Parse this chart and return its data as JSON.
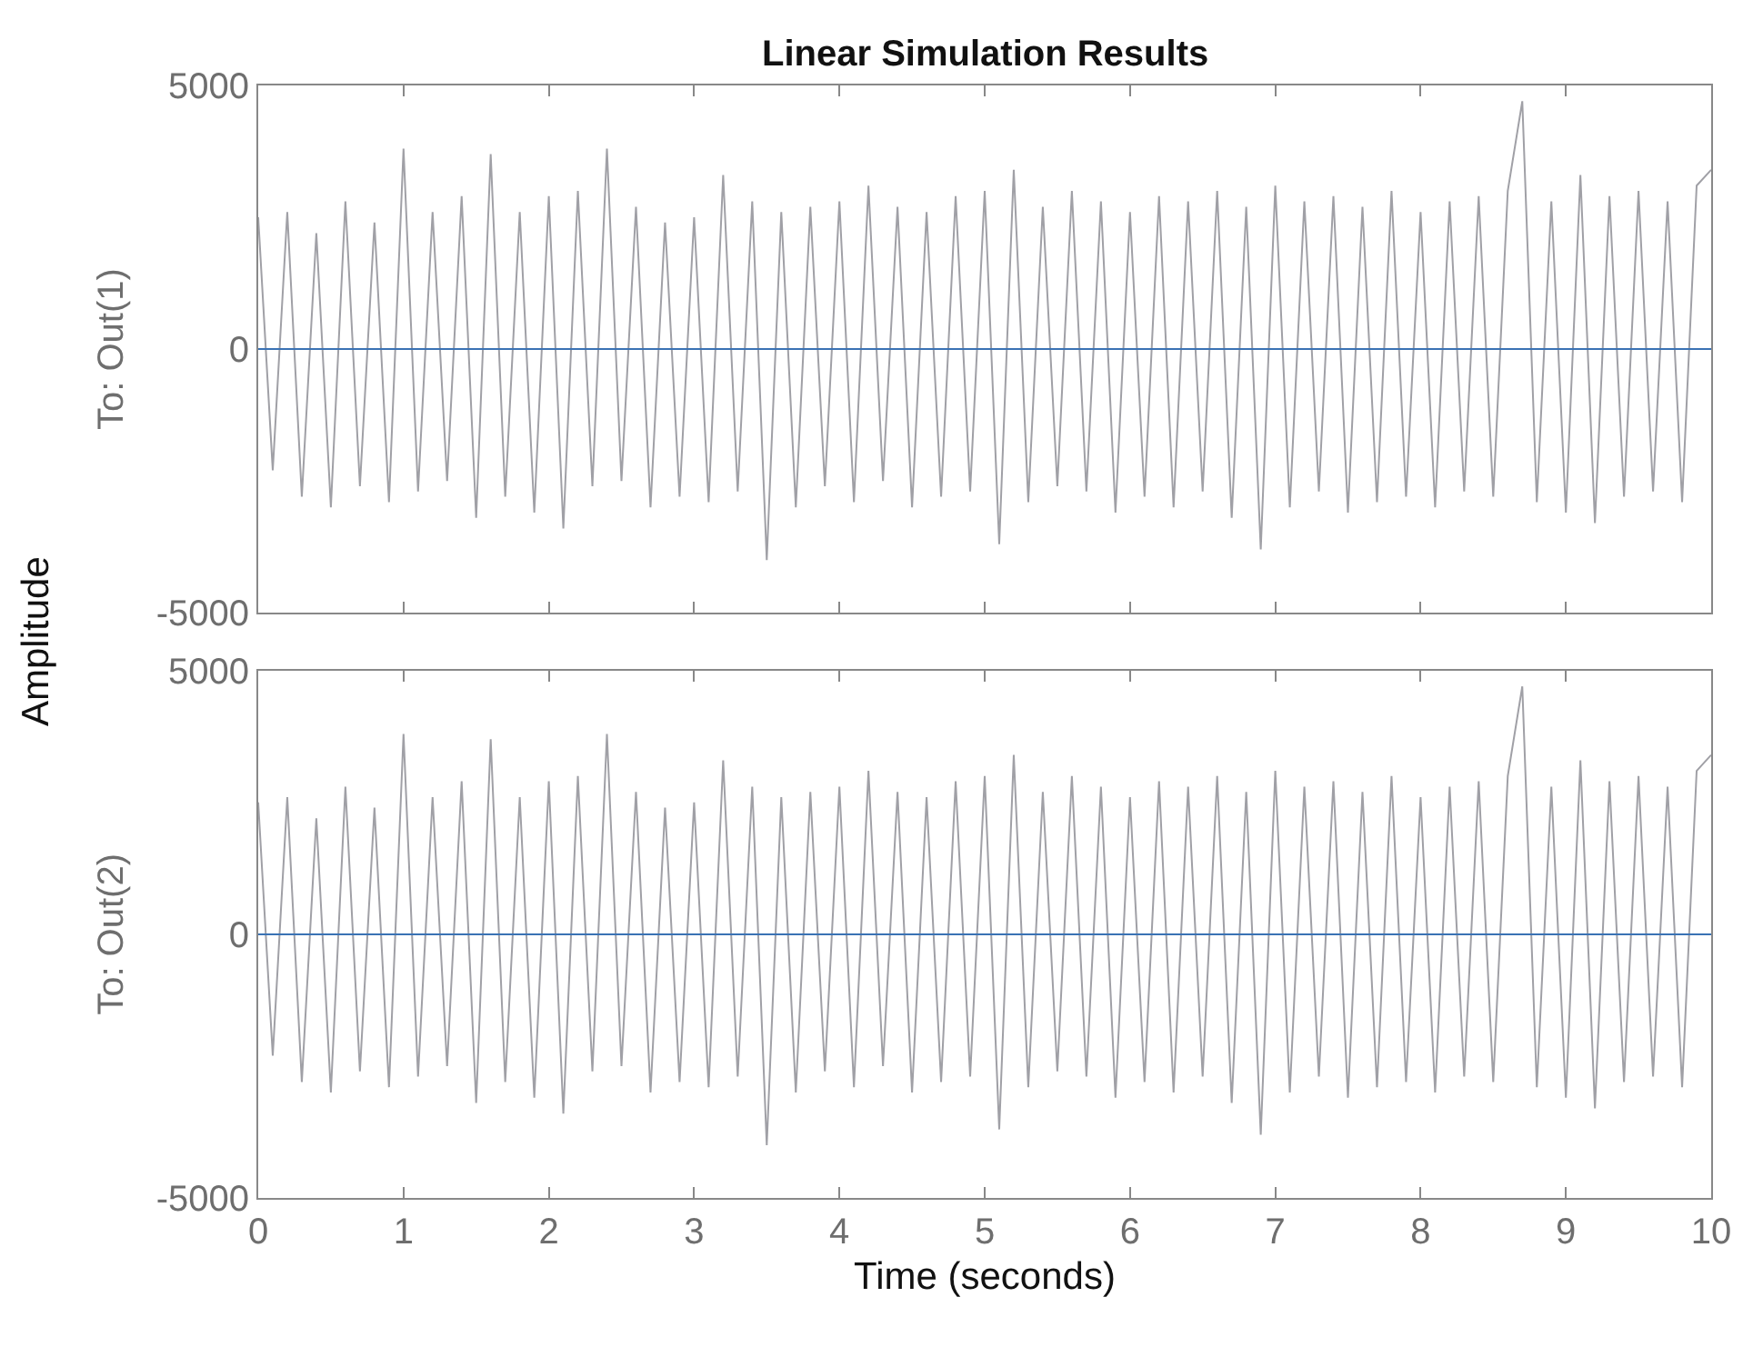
{
  "chart_data": [
    {
      "type": "line",
      "title": "Linear Simulation Results",
      "ylabel": "To: Out(1)",
      "annotations": [
        "Amplitude"
      ],
      "x": [
        0,
        0.1,
        0.2,
        0.3,
        0.4,
        0.5,
        0.6,
        0.7,
        0.8,
        0.9,
        1,
        1.1,
        1.2,
        1.3,
        1.4,
        1.5,
        1.6,
        1.7,
        1.8,
        1.9,
        2,
        2.1,
        2.2,
        2.3,
        2.4,
        2.5,
        2.6,
        2.7,
        2.8,
        2.9,
        3,
        3.1,
        3.2,
        3.3,
        3.4,
        3.5,
        3.6,
        3.7,
        3.8,
        3.9,
        4,
        4.1,
        4.2,
        4.3,
        4.4,
        4.5,
        4.6,
        4.7,
        4.8,
        4.9,
        5,
        5.1,
        5.2,
        5.3,
        5.4,
        5.5,
        5.6,
        5.7,
        5.8,
        5.9,
        6,
        6.1,
        6.2,
        6.3,
        6.4,
        6.5,
        6.6,
        6.7,
        6.8,
        6.9,
        7,
        7.1,
        7.2,
        7.3,
        7.4,
        7.5,
        7.6,
        7.7,
        7.8,
        7.9,
        8,
        8.1,
        8.2,
        8.3,
        8.4,
        8.5,
        8.6,
        8.7,
        8.8,
        8.9,
        9,
        9.1,
        9.2,
        9.3,
        9.4,
        9.5,
        9.6,
        9.7,
        9.8,
        9.9,
        10
      ],
      "series": [
        {
          "color": "#a0a0a6",
          "values": [
            2500,
            -2300,
            2600,
            -2800,
            2200,
            -3000,
            2800,
            -2600,
            2400,
            -2900,
            3800,
            -2700,
            2600,
            -2500,
            2900,
            -3200,
            3700,
            -2800,
            2600,
            -3100,
            2900,
            -3400,
            3000,
            -2600,
            3800,
            -2500,
            2700,
            -3000,
            2400,
            -2800,
            2500,
            -2900,
            3300,
            -2700,
            2800,
            -4000,
            2600,
            -3000,
            2700,
            -2600,
            2800,
            -2900,
            3100,
            -2500,
            2700,
            -3000,
            2600,
            -2800,
            2900,
            -2700,
            3000,
            -3700,
            3400,
            -2900,
            2700,
            -2600,
            3000,
            -2700,
            2800,
            -3100,
            2600,
            -2800,
            2900,
            -3000,
            2800,
            -2700,
            3000,
            -3200,
            2700,
            -3800,
            3100,
            -3000,
            2800,
            -2700,
            2900,
            -3100,
            2700,
            -2900,
            3000,
            -2800,
            2600,
            -3000,
            2800,
            -2700,
            2900,
            -2800,
            3000,
            4700,
            -2900,
            2800,
            -3100,
            3300,
            -3300,
            2900,
            -2800,
            3000,
            -2700,
            2800,
            -2900,
            3100,
            3400
          ]
        },
        {
          "color": "#3a72b4",
          "values": [
            0,
            0,
            0,
            0,
            0,
            0,
            0,
            0,
            0,
            0,
            0,
            0,
            0,
            0,
            0,
            0,
            0,
            0,
            0,
            0,
            0,
            0,
            0,
            0,
            0,
            0,
            0,
            0,
            0,
            0,
            0,
            0,
            0,
            0,
            0,
            0,
            0,
            0,
            0,
            0,
            0,
            0,
            0,
            0,
            0,
            0,
            0,
            0,
            0,
            0,
            0,
            0,
            0,
            0,
            0,
            0,
            0,
            0,
            0,
            0,
            0,
            0,
            0,
            0,
            0,
            0,
            0,
            0,
            0,
            0,
            0,
            0,
            0,
            0,
            0,
            0,
            0,
            0,
            0,
            0,
            0,
            0,
            0,
            0,
            0,
            0,
            0,
            0,
            0,
            0,
            0,
            0,
            0,
            0,
            0,
            0,
            0,
            0,
            0,
            0,
            0
          ]
        }
      ],
      "xlim": [
        0,
        10
      ],
      "xticks": [
        0,
        1,
        2,
        3,
        4,
        5,
        6,
        7,
        8,
        9,
        10
      ],
      "ylim": [
        -5000,
        5000
      ],
      "yticks": [
        -5000,
        0,
        5000
      ],
      "tick_labels": "y"
    },
    {
      "type": "line",
      "ylabel": "To: Out(2)",
      "xlabel": "Time (seconds)",
      "x": [
        0,
        0.1,
        0.2,
        0.3,
        0.4,
        0.5,
        0.6,
        0.7,
        0.8,
        0.9,
        1,
        1.1,
        1.2,
        1.3,
        1.4,
        1.5,
        1.6,
        1.7,
        1.8,
        1.9,
        2,
        2.1,
        2.2,
        2.3,
        2.4,
        2.5,
        2.6,
        2.7,
        2.8,
        2.9,
        3,
        3.1,
        3.2,
        3.3,
        3.4,
        3.5,
        3.6,
        3.7,
        3.8,
        3.9,
        4,
        4.1,
        4.2,
        4.3,
        4.4,
        4.5,
        4.6,
        4.7,
        4.8,
        4.9,
        5,
        5.1,
        5.2,
        5.3,
        5.4,
        5.5,
        5.6,
        5.7,
        5.8,
        5.9,
        6,
        6.1,
        6.2,
        6.3,
        6.4,
        6.5,
        6.6,
        6.7,
        6.8,
        6.9,
        7,
        7.1,
        7.2,
        7.3,
        7.4,
        7.5,
        7.6,
        7.7,
        7.8,
        7.9,
        8,
        8.1,
        8.2,
        8.3,
        8.4,
        8.5,
        8.6,
        8.7,
        8.8,
        8.9,
        9,
        9.1,
        9.2,
        9.3,
        9.4,
        9.5,
        9.6,
        9.7,
        9.8,
        9.9,
        10
      ],
      "series": [
        {
          "color": "#a0a0a6",
          "values": [
            2500,
            -2300,
            2600,
            -2800,
            2200,
            -3000,
            2800,
            -2600,
            2400,
            -2900,
            3800,
            -2700,
            2600,
            -2500,
            2900,
            -3200,
            3700,
            -2800,
            2600,
            -3100,
            2900,
            -3400,
            3000,
            -2600,
            3800,
            -2500,
            2700,
            -3000,
            2400,
            -2800,
            2500,
            -2900,
            3300,
            -2700,
            2800,
            -4000,
            2600,
            -3000,
            2700,
            -2600,
            2800,
            -2900,
            3100,
            -2500,
            2700,
            -3000,
            2600,
            -2800,
            2900,
            -2700,
            3000,
            -3700,
            3400,
            -2900,
            2700,
            -2600,
            3000,
            -2700,
            2800,
            -3100,
            2600,
            -2800,
            2900,
            -3000,
            2800,
            -2700,
            3000,
            -3200,
            2700,
            -3800,
            3100,
            -3000,
            2800,
            -2700,
            2900,
            -3100,
            2700,
            -2900,
            3000,
            -2800,
            2600,
            -3000,
            2800,
            -2700,
            2900,
            -2800,
            3000,
            4700,
            -2900,
            2800,
            -3100,
            3300,
            -3300,
            2900,
            -2800,
            3000,
            -2700,
            2800,
            -2900,
            3100,
            3400
          ]
        },
        {
          "color": "#3a72b4",
          "values": [
            0,
            0,
            0,
            0,
            0,
            0,
            0,
            0,
            0,
            0,
            0,
            0,
            0,
            0,
            0,
            0,
            0,
            0,
            0,
            0,
            0,
            0,
            0,
            0,
            0,
            0,
            0,
            0,
            0,
            0,
            0,
            0,
            0,
            0,
            0,
            0,
            0,
            0,
            0,
            0,
            0,
            0,
            0,
            0,
            0,
            0,
            0,
            0,
            0,
            0,
            0,
            0,
            0,
            0,
            0,
            0,
            0,
            0,
            0,
            0,
            0,
            0,
            0,
            0,
            0,
            0,
            0,
            0,
            0,
            0,
            0,
            0,
            0,
            0,
            0,
            0,
            0,
            0,
            0,
            0,
            0,
            0,
            0,
            0,
            0,
            0,
            0,
            0,
            0,
            0,
            0,
            0,
            0,
            0,
            0,
            0,
            0,
            0,
            0,
            0,
            0
          ]
        }
      ],
      "xlim": [
        0,
        10
      ],
      "xticks": [
        0,
        1,
        2,
        3,
        4,
        5,
        6,
        7,
        8,
        9,
        10
      ],
      "ylim": [
        -5000,
        5000
      ],
      "yticks": [
        -5000,
        0,
        5000
      ]
    }
  ]
}
